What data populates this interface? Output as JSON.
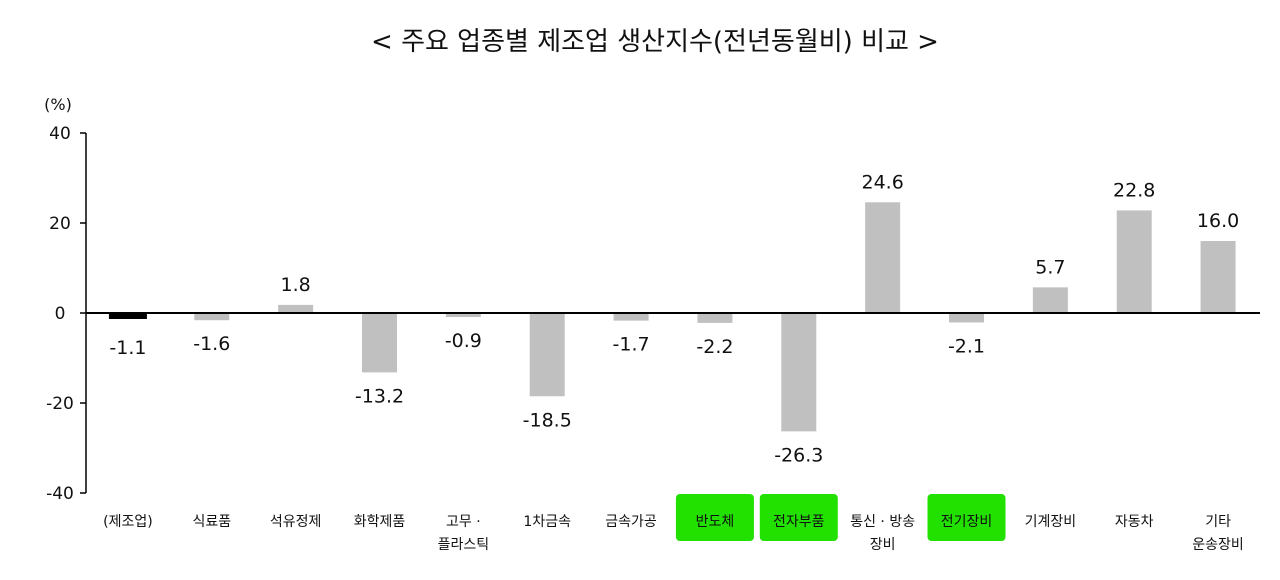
{
  "chart_data": {
    "type": "bar",
    "title": "< 주요 업종별 제조업 생산지수(전년동월비) 비교 >",
    "y_unit": "(%)",
    "ylim": [
      -40,
      40
    ],
    "yticks": [
      40,
      20,
      0,
      -20,
      -40
    ],
    "categories": [
      "(제조업)",
      "식료품",
      "석유정제",
      "화학제품",
      "고무 · 플라스틱",
      "1차금속",
      "금속가공",
      "반도체",
      "전자부품",
      "통신 · 방송 장비",
      "전기장비",
      "기계장비",
      "자동차",
      "기타 운송장비"
    ],
    "category_lines": [
      [
        "(제조업)"
      ],
      [
        "식료품"
      ],
      [
        "석유정제"
      ],
      [
        "화학제품"
      ],
      [
        "고무 ·",
        "플라스틱"
      ],
      [
        "1차금속"
      ],
      [
        "금속가공"
      ],
      [
        "반도체"
      ],
      [
        "전자부품"
      ],
      [
        "통신 · 방송",
        "장비"
      ],
      [
        "전기장비"
      ],
      [
        "기계장비"
      ],
      [
        "자동차"
      ],
      [
        "기타",
        "운송장비"
      ]
    ],
    "values": [
      -1.1,
      -1.6,
      1.8,
      -13.2,
      -0.9,
      -18.5,
      -1.7,
      -2.2,
      -26.3,
      24.6,
      -2.1,
      5.7,
      22.8,
      16.0
    ],
    "value_labels": [
      "-1.1",
      "-1.6",
      "1.8",
      "-13.2",
      "-0.9",
      "-18.5",
      "-1.7",
      "-2.2",
      "-26.3",
      "24.6",
      "-2.1",
      "5.7",
      "22.8",
      "16.0"
    ],
    "highlighted_categories": [
      7,
      8,
      10
    ],
    "colors": {
      "bar": "#c0c0c0",
      "total_bar": "#000000",
      "highlight": "#22e000",
      "axis": "#000000"
    },
    "grid": false,
    "legend": "none"
  }
}
